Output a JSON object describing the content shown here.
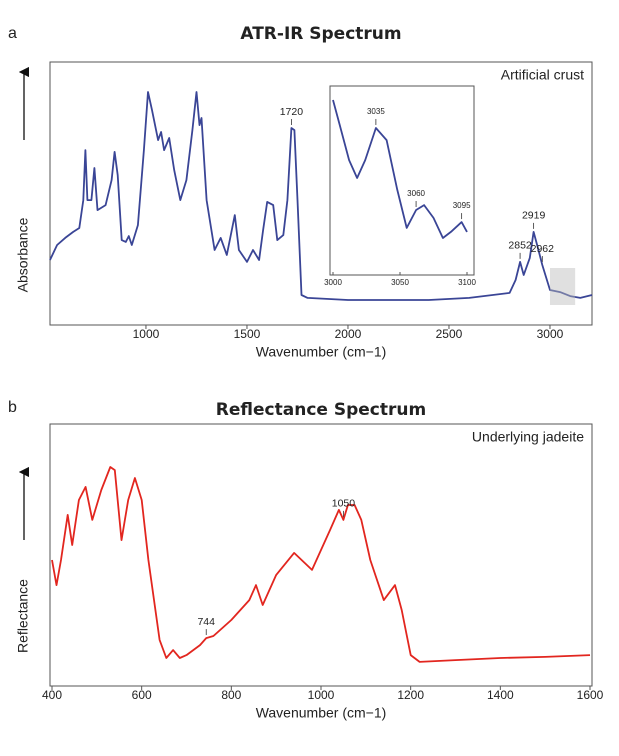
{
  "chart_data": [
    {
      "type": "line",
      "panel": "a",
      "title": "ATR-IR Spectrum",
      "note": "Artificial crust",
      "xlabel": "Wavenumber (cm−1)",
      "ylabel": "Absorbance",
      "color": "#3a4596",
      "xlim": [
        525,
        3208
      ],
      "xticks": [
        1000,
        1500,
        2000,
        2500,
        3000
      ],
      "ylim": [
        0,
        100
      ],
      "x": [
        525,
        560,
        600,
        640,
        670,
        690,
        700,
        710,
        730,
        745,
        760,
        800,
        830,
        845,
        860,
        880,
        900,
        915,
        930,
        960,
        990,
        1010,
        1030,
        1060,
        1075,
        1090,
        1115,
        1140,
        1170,
        1200,
        1230,
        1250,
        1265,
        1275,
        1300,
        1340,
        1370,
        1400,
        1440,
        1460,
        1500,
        1530,
        1560,
        1580,
        1600,
        1630,
        1650,
        1680,
        1700,
        1720,
        1735,
        1750,
        1770,
        1800,
        2000,
        2200,
        2400,
        2600,
        2800,
        2830,
        2852,
        2870,
        2900,
        2919,
        2940,
        2962,
        3000,
        3050,
        3100,
        3150,
        3208
      ],
      "values": [
        24.7,
        30.4,
        33.1,
        35.4,
        36.9,
        47.5,
        66.5,
        47.5,
        47.5,
        59.7,
        43.7,
        45.6,
        55.1,
        65.8,
        57.0,
        32.3,
        31.6,
        33.8,
        30.4,
        38.0,
        66.5,
        88.6,
        81.7,
        70.3,
        73.4,
        66.5,
        71.1,
        58.9,
        47.5,
        55.1,
        74.1,
        88.6,
        76.0,
        78.7,
        47.5,
        28.5,
        33.1,
        26.6,
        41.8,
        28.5,
        24.0,
        28.5,
        24.7,
        36.1,
        46.8,
        45.6,
        32.3,
        34.2,
        47.5,
        74.9,
        74.1,
        47.5,
        11.4,
        10.3,
        9.5,
        9.5,
        9.5,
        10.3,
        12.2,
        17.1,
        24.0,
        19.0,
        25.5,
        35.4,
        29.3,
        22.8,
        13.3,
        12.5,
        11.0,
        10.3,
        11.4
      ],
      "annotations": [
        {
          "text": "1720",
          "x": 1720
        },
        {
          "text": "2852",
          "x": 2852
        },
        {
          "text": "2919",
          "x": 2919
        },
        {
          "text": "2962",
          "x": 2962
        }
      ]
    },
    {
      "type": "line",
      "color": "#3a4596",
      "xlim": [
        3000,
        3100
      ],
      "xticks": [
        3000,
        3050,
        3100
      ],
      "ylim": [
        0,
        100
      ],
      "x": [
        3000,
        3005,
        3012,
        3018,
        3024,
        3032,
        3040,
        3048,
        3055,
        3062,
        3068,
        3075,
        3082,
        3088,
        3096,
        3100
      ],
      "values": [
        92.6,
        79.4,
        60.8,
        51.3,
        60.8,
        77.8,
        71.4,
        45.0,
        24.9,
        34.4,
        37.0,
        30.2,
        19.6,
        22.8,
        28.0,
        22.8
      ],
      "annotations": [
        {
          "text": "3035",
          "x": 3032
        },
        {
          "text": "3060",
          "x": 3062
        },
        {
          "text": "3095",
          "x": 3096
        }
      ]
    },
    {
      "type": "line",
      "panel": "b",
      "title": "Reflectance Spectrum",
      "note": "Underlying jadeite",
      "xlabel": "Wavenumber (cm−1)",
      "ylabel": "Reflectance",
      "color": "#e2261f",
      "xlim": [
        400,
        1600
      ],
      "xticks": [
        400,
        600,
        800,
        1000,
        1200,
        1400,
        1600
      ],
      "ylim": [
        0,
        100
      ],
      "x": [
        400,
        410,
        420,
        435,
        445,
        460,
        475,
        490,
        510,
        530,
        540,
        555,
        570,
        585,
        600,
        615,
        640,
        655,
        670,
        685,
        700,
        730,
        744,
        760,
        800,
        840,
        855,
        870,
        900,
        940,
        980,
        1020,
        1040,
        1050,
        1060,
        1075,
        1090,
        1110,
        1140,
        1165,
        1180,
        1200,
        1220,
        1300,
        1400,
        1500,
        1600
      ],
      "values": [
        48.1,
        38.5,
        48.1,
        65.3,
        53.8,
        71.0,
        76.0,
        63.4,
        74.8,
        83.6,
        82.4,
        55.7,
        71.0,
        79.4,
        71.0,
        48.1,
        17.6,
        10.7,
        13.7,
        10.7,
        11.8,
        15.6,
        18.3,
        19.1,
        25.2,
        32.8,
        38.5,
        30.9,
        42.4,
        50.8,
        44.3,
        59.5,
        67.2,
        63.4,
        69.1,
        69.1,
        63.4,
        48.1,
        32.8,
        38.5,
        29.0,
        11.8,
        9.2,
        9.9,
        10.7,
        11.1,
        11.8
      ],
      "annotations": [
        {
          "text": "744",
          "x": 744
        },
        {
          "text": "1050",
          "x": 1050
        }
      ]
    }
  ]
}
